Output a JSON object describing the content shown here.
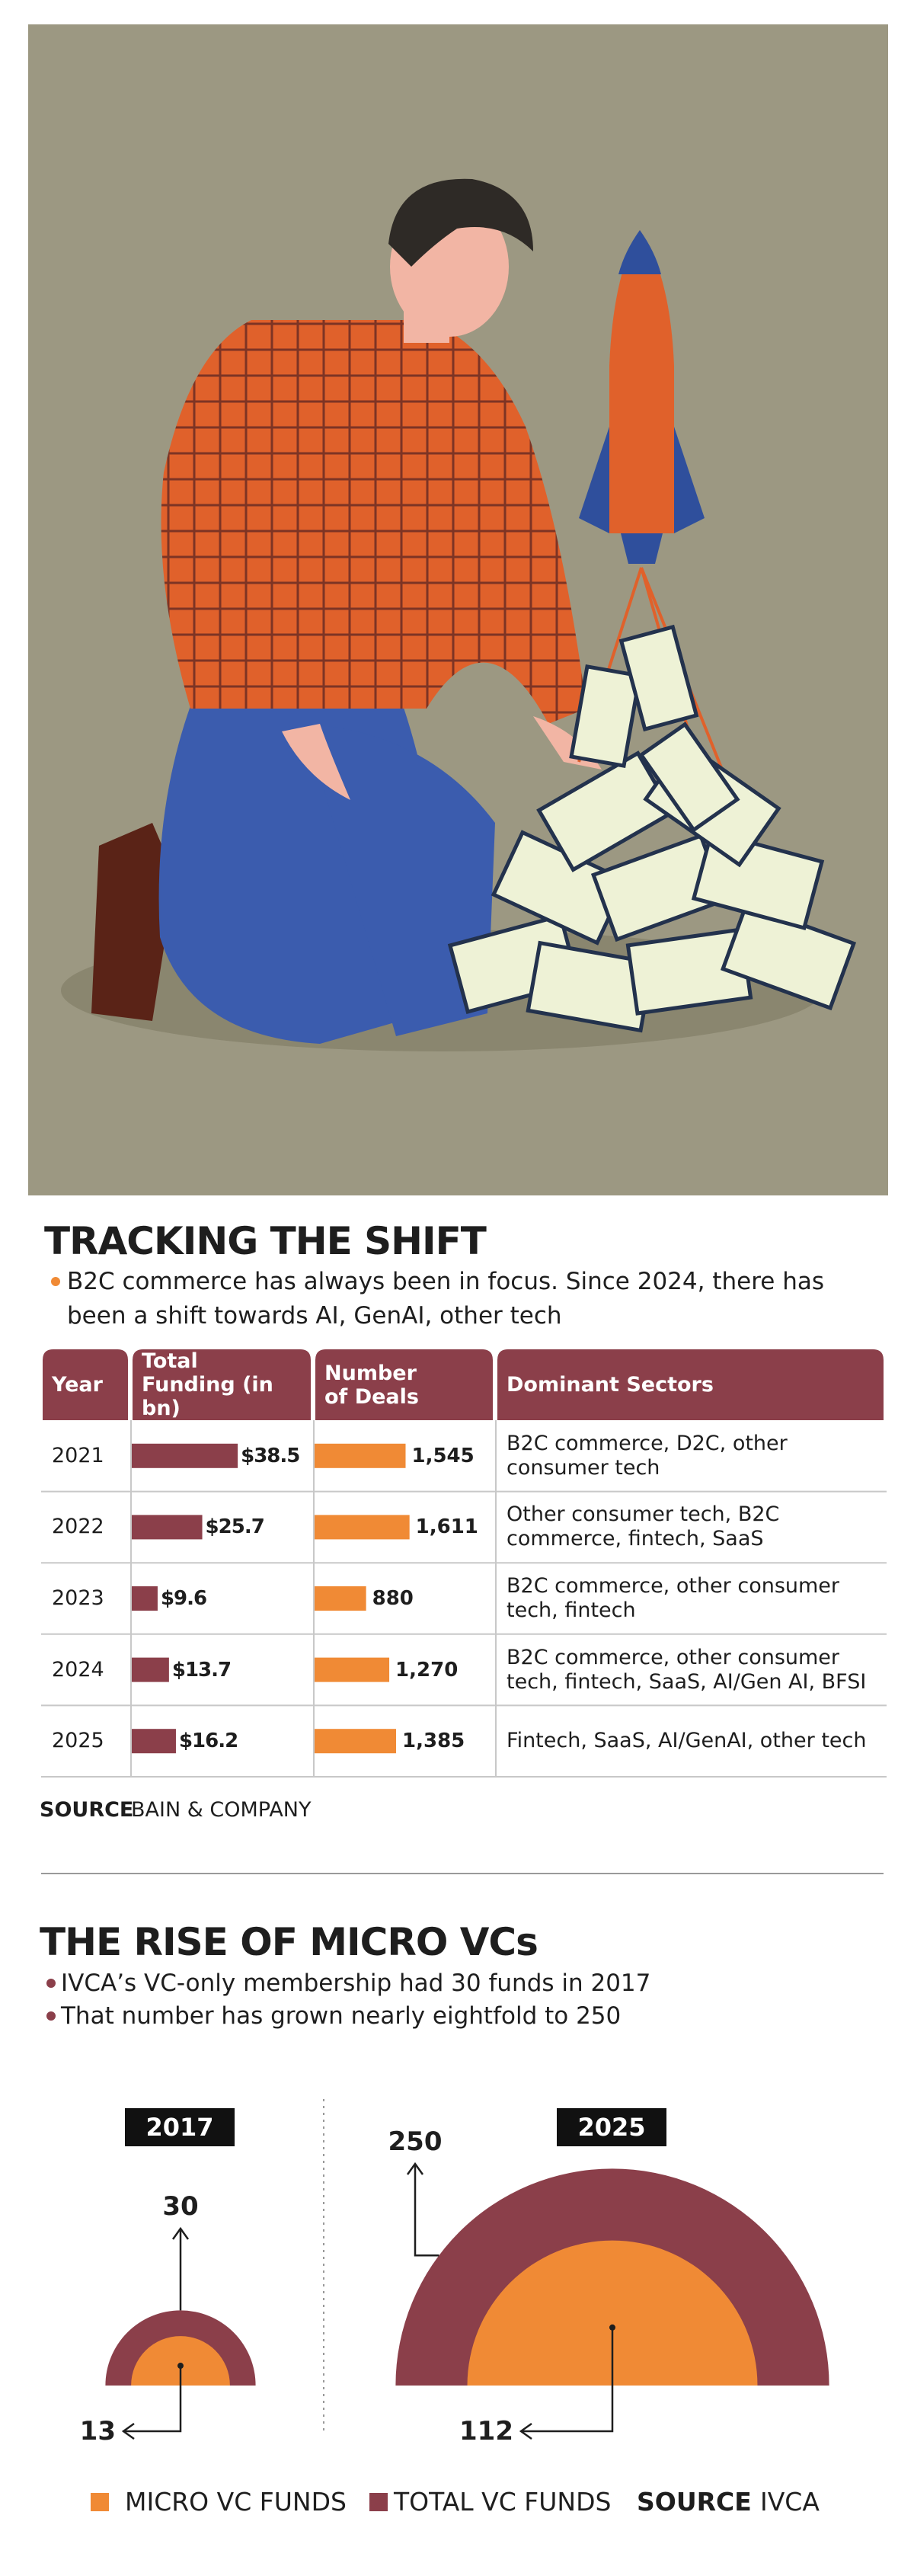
{
  "section1": {
    "title": "TRACKING THE SHIFT",
    "bullet": "B2C commerce has always been in focus. Since 2024, there has been a shift towards AI, GenAI, other tech",
    "columns": [
      "Year",
      "Total Funding (in bn)",
      "Number of Deals",
      "Dominant Sectors"
    ],
    "rows": [
      {
        "year": "2021",
        "funding": 38.5,
        "funding_label": "$38.5",
        "deals": 1545,
        "deals_label": "1,545",
        "sectors": "B2C commerce, D2C, other consumer tech"
      },
      {
        "year": "2022",
        "funding": 25.7,
        "funding_label": "$25.7",
        "deals": 1611,
        "deals_label": "1,611",
        "sectors": "Other consumer tech, B2C commerce, fintech, SaaS"
      },
      {
        "year": "2023",
        "funding": 9.6,
        "funding_label": "$9.6",
        "deals": 880,
        "deals_label": "880",
        "sectors": "B2C commerce, other consumer tech, fintech"
      },
      {
        "year": "2024",
        "funding": 13.7,
        "funding_label": "$13.7",
        "deals": 1270,
        "deals_label": "1,270",
        "sectors": "B2C commerce, other consumer tech, fintech, SaaS, AI/Gen AI, BFSI"
      },
      {
        "year": "2025",
        "funding": 16.2,
        "funding_label": "$16.2",
        "deals": 1385,
        "deals_label": "1,385",
        "sectors": "Fintech, SaaS, AI/GenAI, other tech"
      }
    ],
    "funding_color": "#8b3f4a",
    "deals_color": "#f08a35",
    "source_label": "SOURCE",
    "source": "BAIN & COMPANY"
  },
  "section2": {
    "title": "THE RISE OF MICRO VCs",
    "bullets": [
      "IVCA’s VC-only membership had 30 funds in 2017",
      "That number has grown nearly eightfold to 250"
    ],
    "groups": [
      {
        "year": "2017",
        "total": 30,
        "micro": 13
      },
      {
        "year": "2025",
        "total": 250,
        "micro": 112
      }
    ],
    "legend": [
      {
        "name": "MICRO VC FUNDS",
        "color": "#f08a35"
      },
      {
        "name": "TOTAL VC FUNDS",
        "color": "#8b3f4a"
      }
    ],
    "source_label": "SOURCE",
    "source": "IVCA"
  }
}
